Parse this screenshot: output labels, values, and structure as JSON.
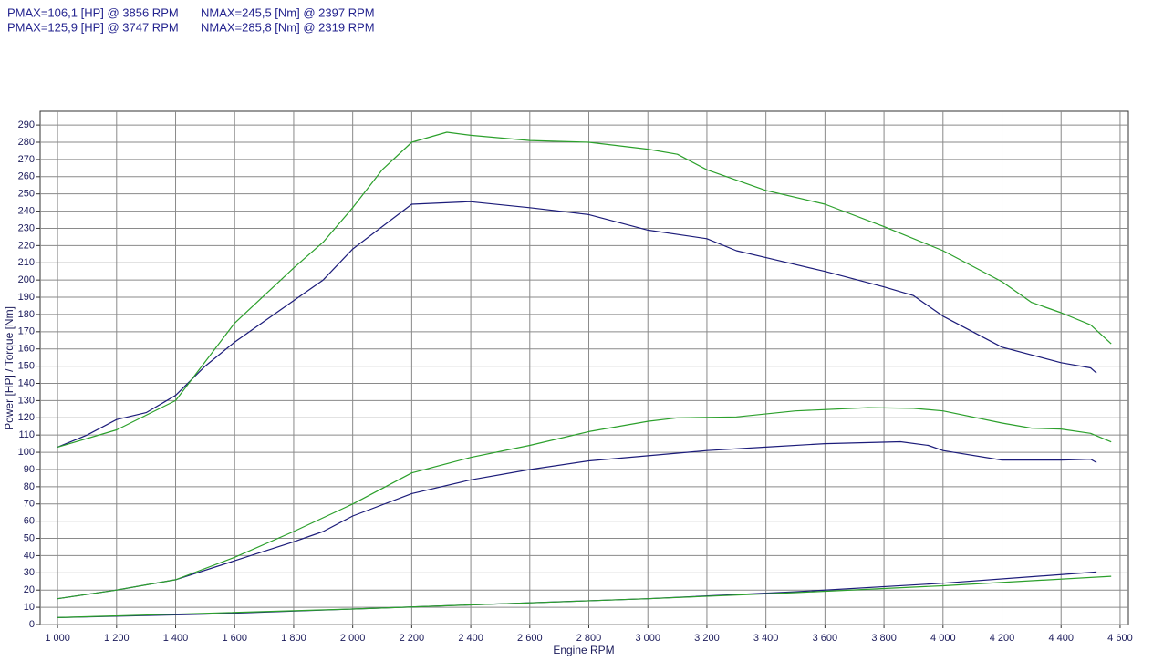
{
  "chart_data": {
    "type": "line",
    "annotations": [
      "PMAX=106,1 [HP] @ 3856 RPM",
      "NMAX=245,5 [Nm] @ 2397 RPM",
      "PMAX=125,9 [HP] @ 3747 RPM",
      "NMAX=285,8 [Nm] @ 2319 RPM"
    ],
    "x_label": "Engine RPM",
    "y_label": "Power [HP] / Torque [Nm]",
    "xlim": [
      941,
      4628
    ],
    "ylim": [
      0,
      298
    ],
    "xticks": [
      {
        "value": 1000,
        "label": "1 000"
      },
      {
        "value": 1200,
        "label": "1 200"
      },
      {
        "value": 1400,
        "label": "1 400"
      },
      {
        "value": 1600,
        "label": "1 600"
      },
      {
        "value": 1800,
        "label": "1 800"
      },
      {
        "value": 2000,
        "label": "2 000"
      },
      {
        "value": 2200,
        "label": "2 200"
      },
      {
        "value": 2400,
        "label": "2 400"
      },
      {
        "value": 2600,
        "label": "2 600"
      },
      {
        "value": 2800,
        "label": "2 800"
      },
      {
        "value": 3000,
        "label": "3 000"
      },
      {
        "value": 3200,
        "label": "3 200"
      },
      {
        "value": 3400,
        "label": "3 400"
      },
      {
        "value": 3600,
        "label": "3 600"
      },
      {
        "value": 3800,
        "label": "3 800"
      },
      {
        "value": 4000,
        "label": "4 000"
      },
      {
        "value": 4200,
        "label": "4 200"
      },
      {
        "value": 4400,
        "label": "4 400"
      },
      {
        "value": 4600,
        "label": "4 600"
      }
    ],
    "yticks": [
      0,
      10,
      20,
      30,
      40,
      50,
      60,
      70,
      80,
      90,
      100,
      110,
      120,
      130,
      140,
      150,
      160,
      170,
      180,
      190,
      200,
      210,
      220,
      230,
      240,
      250,
      260,
      270,
      280,
      290
    ],
    "grid": true,
    "series": [
      {
        "color": "#1c1c7a",
        "x": [
          1000,
          1100,
          1200,
          1300,
          1400,
          1500,
          1600,
          1800,
          1900,
          2000,
          2200,
          2397,
          2600,
          2800,
          3000,
          3200,
          3300,
          3400,
          3600,
          3800,
          3900,
          4000,
          4200,
          4400,
          4500,
          4520
        ],
        "values": [
          103,
          110,
          119,
          123,
          133,
          150,
          164,
          188,
          200,
          218,
          244,
          245.5,
          242,
          238,
          229,
          224,
          217,
          213,
          205,
          196,
          191,
          179,
          161,
          152,
          149,
          146
        ]
      },
      {
        "color": "#2ca02c",
        "x": [
          1000,
          1200,
          1400,
          1600,
          1800,
          1900,
          2000,
          2100,
          2200,
          2319,
          2400,
          2600,
          2800,
          3000,
          3100,
          3200,
          3400,
          3600,
          3800,
          4000,
          4200,
          4300,
          4400,
          4500,
          4570
        ],
        "values": [
          103,
          113,
          130,
          175,
          207,
          222,
          242,
          264,
          280,
          285.8,
          284,
          281,
          280,
          276,
          273,
          264,
          252,
          244,
          231,
          217,
          199,
          187,
          181,
          174,
          163
        ]
      },
      {
        "color": "#1c1c7a",
        "x": [
          1000,
          1200,
          1400,
          1600,
          1800,
          1900,
          2000,
          2200,
          2400,
          2600,
          2800,
          3000,
          3200,
          3400,
          3600,
          3856,
          3950,
          4000,
          4200,
          4400,
          4500,
          4520
        ],
        "values": [
          15,
          20,
          26,
          37,
          48,
          54,
          63,
          76,
          84,
          90,
          95,
          98,
          101,
          103,
          105,
          106.1,
          104,
          101,
          95.5,
          95.5,
          96,
          94
        ]
      },
      {
        "color": "#2ca02c",
        "x": [
          1000,
          1200,
          1400,
          1600,
          1800,
          2000,
          2200,
          2400,
          2600,
          2800,
          3000,
          3100,
          3300,
          3500,
          3747,
          3900,
          4000,
          4200,
          4300,
          4400,
          4500,
          4570
        ],
        "values": [
          15,
          20,
          26,
          39,
          54,
          70,
          88,
          97,
          104,
          112,
          118,
          120,
          120.5,
          124,
          125.9,
          125.5,
          124,
          117,
          114,
          113.5,
          111,
          106
        ]
      },
      {
        "color": "#1c1c7a",
        "x": [
          1000,
          1500,
          2000,
          2500,
          3000,
          3500,
          4000,
          4520
        ],
        "values": [
          4,
          6,
          9,
          12,
          15,
          19,
          24,
          30.5
        ]
      },
      {
        "color": "#2ca02c",
        "x": [
          1000,
          2000,
          3000,
          3500,
          4000,
          4570
        ],
        "values": [
          4,
          9,
          15,
          18.5,
          22.5,
          28
        ]
      }
    ]
  }
}
